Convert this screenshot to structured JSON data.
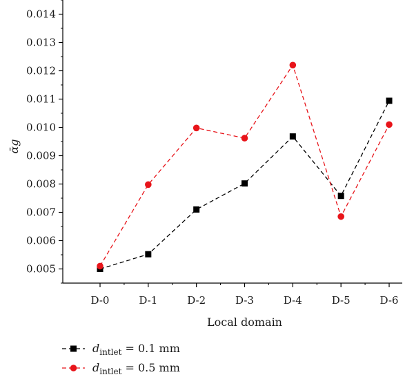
{
  "chart_data": {
    "type": "line",
    "title": "",
    "xlabel": "Local domain",
    "ylabel": "ᾱg",
    "categories": [
      "D-0",
      "D-1",
      "D-2",
      "D-3",
      "D-4",
      "D-5",
      "D-6"
    ],
    "ylim": [
      0.0045,
      0.0145
    ],
    "yticks": [
      "0.005",
      "0.006",
      "0.007",
      "0.008",
      "0.009",
      "0.010",
      "0.011",
      "0.012",
      "0.013",
      "0.014"
    ],
    "grid": false,
    "legend_position": "bottom-left",
    "series": [
      {
        "name": "d_intlet = 0.1 mm",
        "legend": {
          "symbol": "d",
          "sub": "intlet",
          "text": " = 0.1 mm"
        },
        "color": "#000000",
        "marker": "square",
        "line_style": "dashed",
        "values": [
          0.005,
          0.00552,
          0.0071,
          0.00802,
          0.00968,
          0.00758,
          0.01094
        ]
      },
      {
        "name": "d_intlet = 0.5 mm",
        "legend": {
          "symbol": "d",
          "sub": "intlet",
          "text": " = 0.5 mm"
        },
        "color": "#e8141a",
        "marker": "circle",
        "line_style": "dashed",
        "values": [
          0.0051,
          0.00798,
          0.00998,
          0.00962,
          0.0122,
          0.00685,
          0.0101
        ]
      }
    ]
  }
}
